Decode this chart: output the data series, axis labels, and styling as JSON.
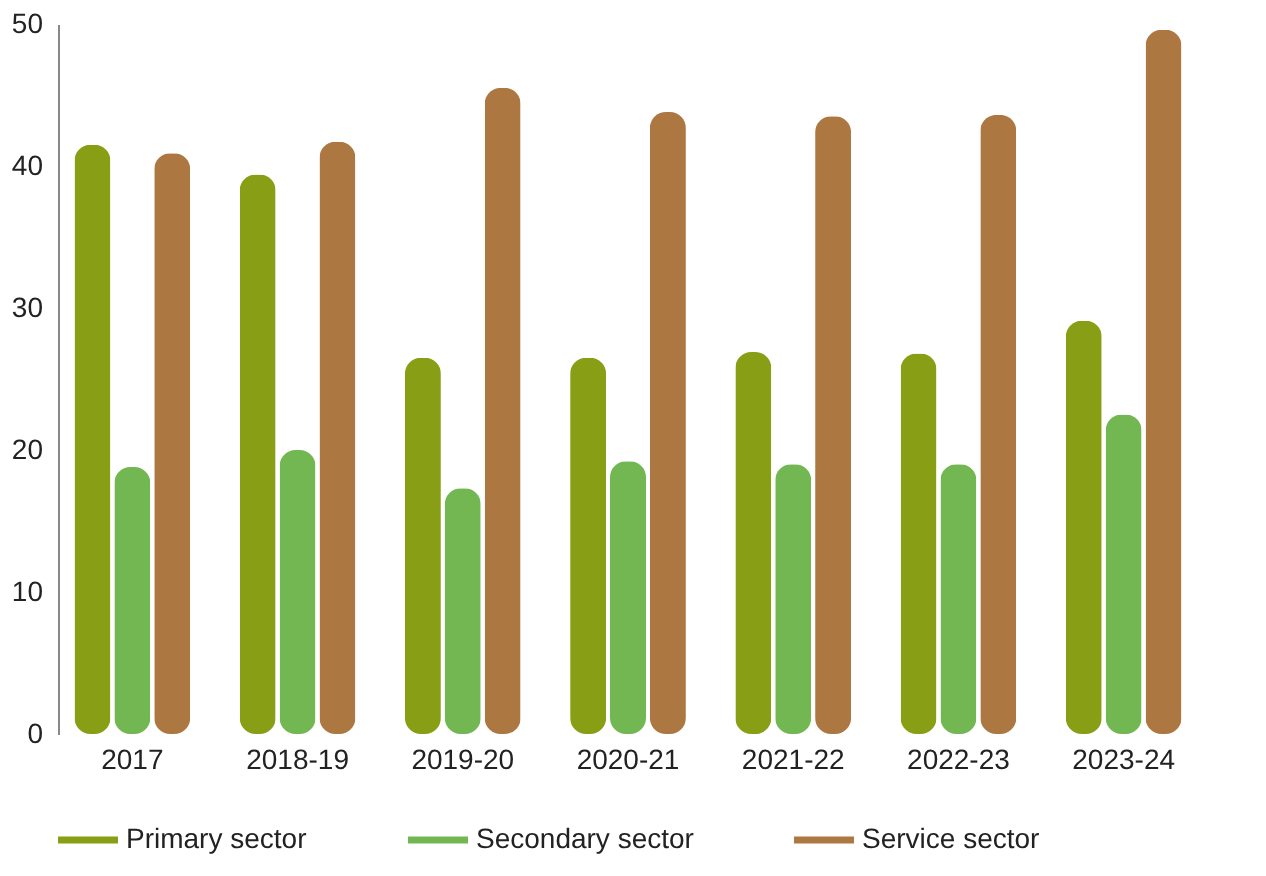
{
  "chart_data": {
    "type": "bar",
    "categories": [
      "2017",
      "2018-19",
      "2019-20",
      "2020-21",
      "2021-22",
      "2022-23",
      "2023-24"
    ],
    "series": [
      {
        "name": "Primary sector",
        "color": "#889f15",
        "values": [
          41.5,
          39.4,
          26.5,
          26.5,
          26.9,
          26.8,
          29.1
        ]
      },
      {
        "name": "Secondary sector",
        "color": "#72b751",
        "values": [
          18.8,
          20.0,
          17.3,
          19.2,
          19.0,
          19.0,
          22.5
        ]
      },
      {
        "name": "Service sector",
        "color": "#ad7742",
        "values": [
          40.9,
          41.7,
          45.5,
          43.8,
          43.5,
          43.6,
          49.6
        ]
      }
    ],
    "ylim": [
      0,
      50
    ],
    "yticks": [
      0,
      10,
      20,
      30,
      40,
      50
    ],
    "grid": false,
    "legend": "bottom"
  }
}
